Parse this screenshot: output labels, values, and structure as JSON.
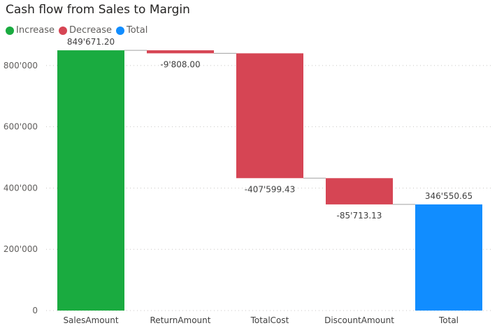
{
  "chart_data": {
    "type": "bar",
    "subtype": "waterfall",
    "title": "Cash flow from Sales to Margin",
    "legend": [
      {
        "name": "Increase",
        "color": "#1aab40"
      },
      {
        "name": "Decrease",
        "color": "#d64554"
      },
      {
        "name": "Total",
        "color": "#118dff"
      }
    ],
    "legend_position": "top-left",
    "categories": [
      "SalesAmount",
      "ReturnAmount",
      "TotalCost",
      "DiscountAmount",
      "Total"
    ],
    "values": [
      849671.2,
      -9808.0,
      -407599.43,
      -85713.13,
      346550.65
    ],
    "kinds": [
      "increase",
      "decrease",
      "decrease",
      "decrease",
      "total"
    ],
    "data_labels": [
      "849'671.20",
      "-9'808.00",
      "-407'599.43",
      "-85'713.13",
      "346'550.65"
    ],
    "yticks": [
      0,
      200000,
      400000,
      600000,
      800000
    ],
    "ytick_labels": [
      "0",
      "200'000",
      "400'000",
      "600'000",
      "800'000"
    ],
    "ylim": [
      0,
      900000
    ],
    "grid": true,
    "xlabel": "",
    "ylabel": ""
  }
}
